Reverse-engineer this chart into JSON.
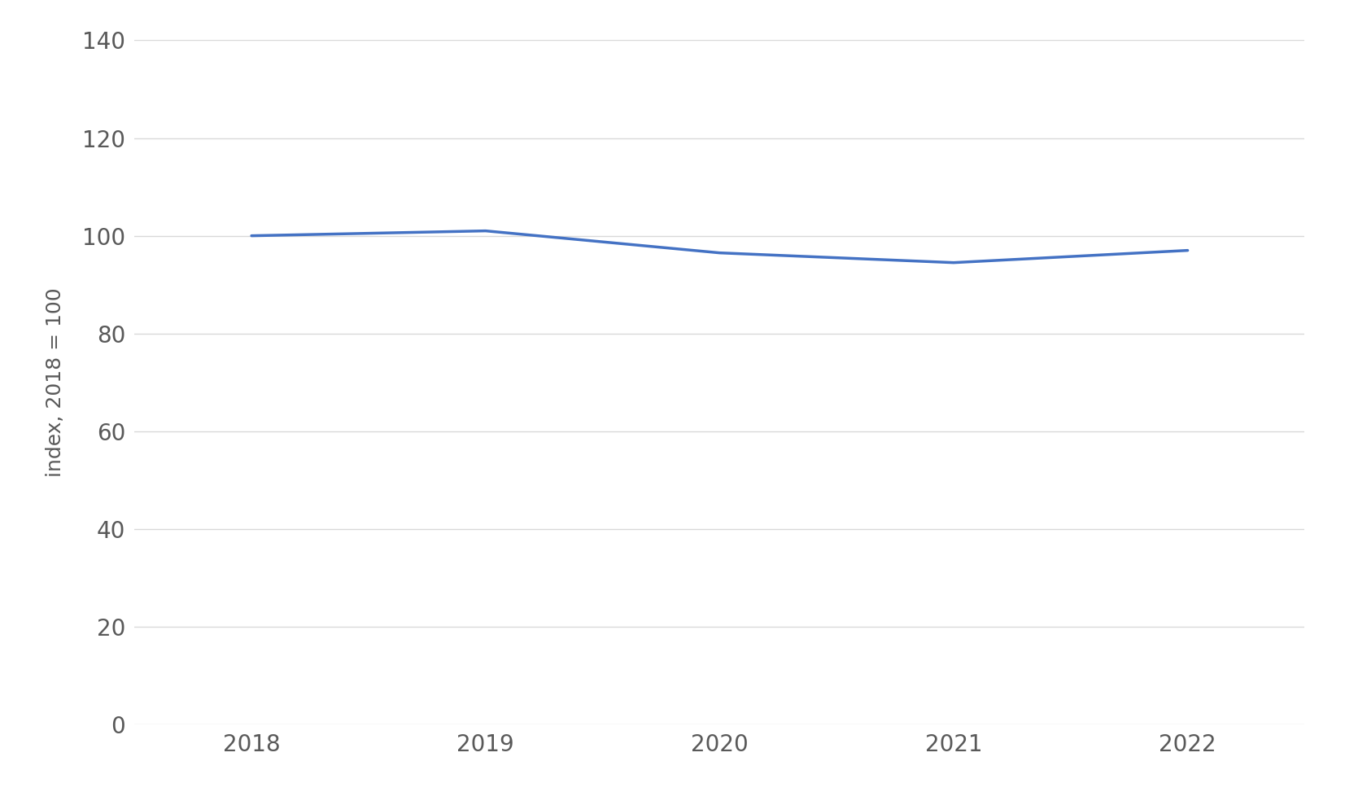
{
  "x": [
    2018,
    2019,
    2020,
    2021,
    2022
  ],
  "y": [
    100,
    101.0,
    96.5,
    94.5,
    97.0
  ],
  "line_color": "#4472C4",
  "line_width": 2.5,
  "ylabel": "index, 2018 = 100",
  "ylim": [
    0,
    140
  ],
  "yticks": [
    0,
    20,
    40,
    60,
    80,
    100,
    120,
    140
  ],
  "xlim": [
    2017.5,
    2022.5
  ],
  "xticks": [
    2018,
    2019,
    2020,
    2021,
    2022
  ],
  "background_color": "#ffffff",
  "grid_color": "#d9d9d9",
  "ylabel_fontsize": 18,
  "tick_fontsize": 20,
  "tick_color": "#595959"
}
